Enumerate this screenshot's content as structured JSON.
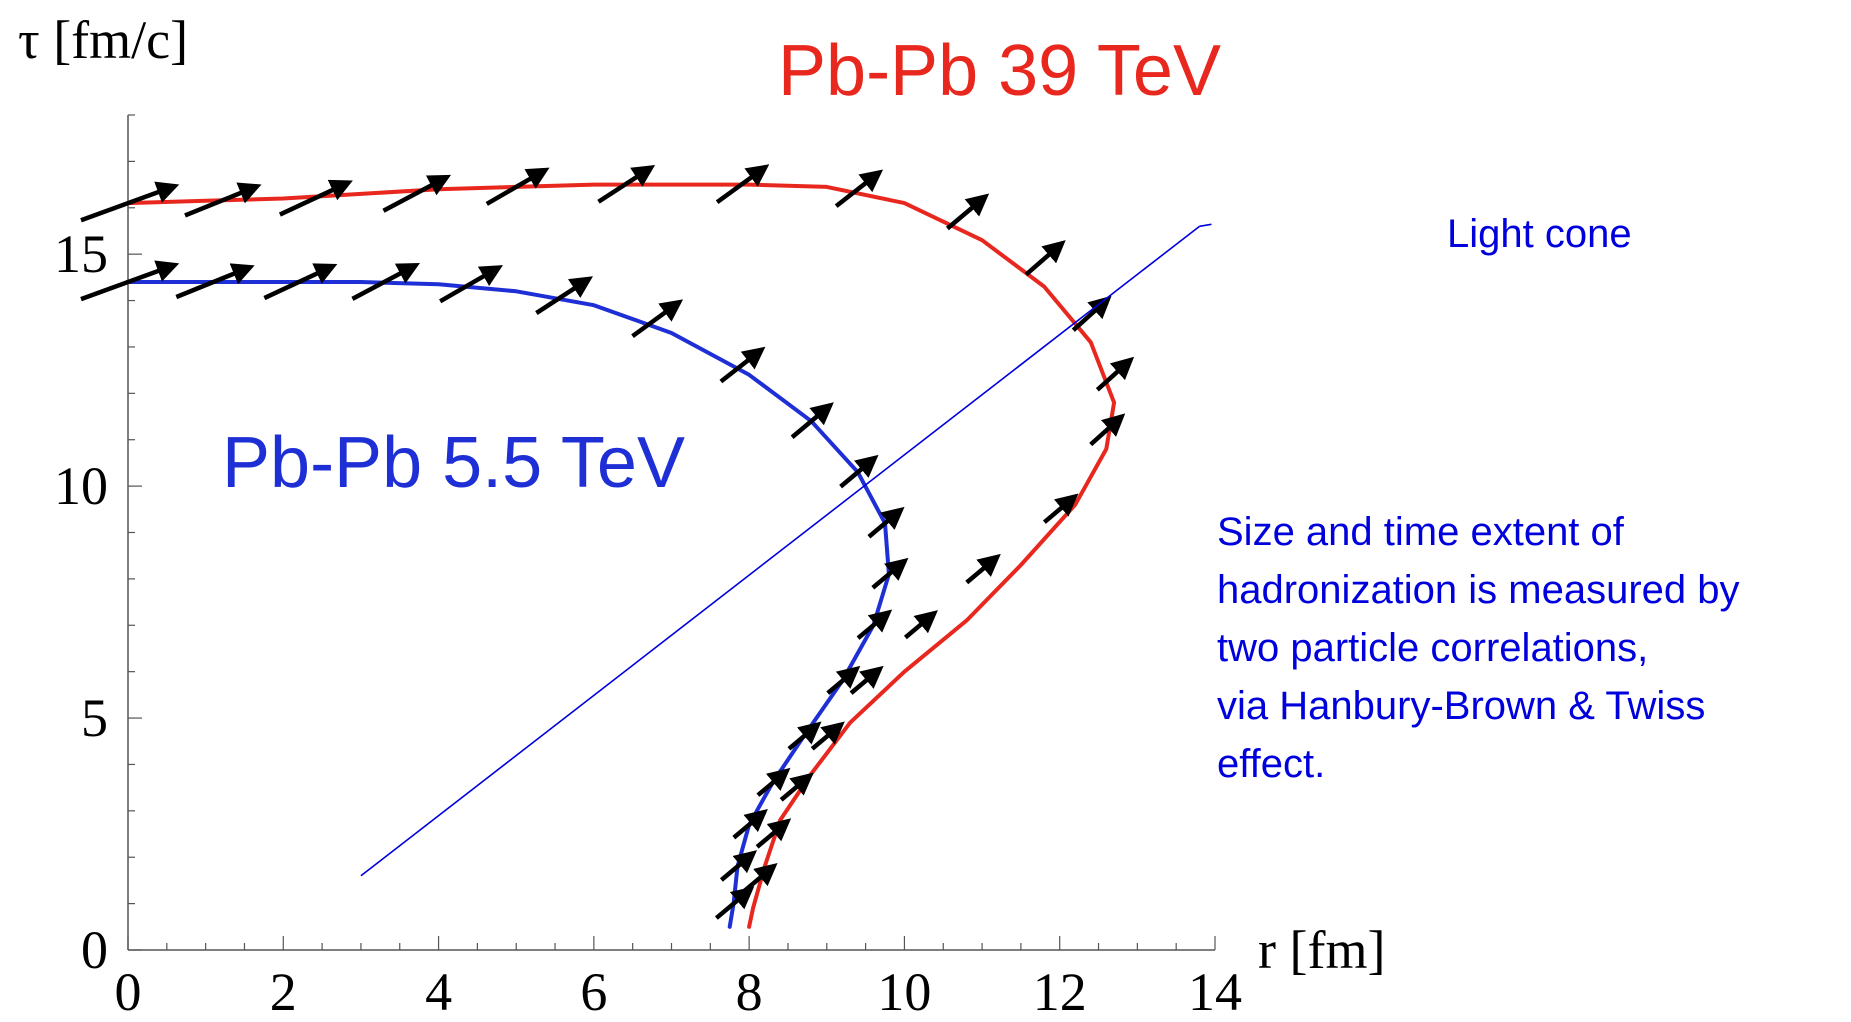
{
  "chart_data": {
    "type": "line",
    "xlabel": "r [fm]",
    "ylabel": "τ [fm/c]",
    "xlim": [
      0,
      14
    ],
    "ylim": [
      0,
      18
    ],
    "xticks": [
      0,
      2,
      4,
      6,
      8,
      10,
      12,
      14
    ],
    "yticks": [
      0,
      5,
      10,
      15
    ],
    "grid": false,
    "series": [
      {
        "name": "Pb-Pb 39 TeV",
        "color": "#e8281e",
        "curve": [
          [
            0,
            16.1
          ],
          [
            1,
            16.15
          ],
          [
            2,
            16.2
          ],
          [
            3,
            16.3
          ],
          [
            4,
            16.4
          ],
          [
            5,
            16.45
          ],
          [
            6,
            16.5
          ],
          [
            7,
            16.5
          ],
          [
            8,
            16.5
          ],
          [
            9,
            16.45
          ],
          [
            10,
            16.1
          ],
          [
            11,
            15.3
          ],
          [
            11.8,
            14.3
          ],
          [
            12.4,
            13.1
          ],
          [
            12.7,
            11.8
          ],
          [
            12.6,
            10.8
          ],
          [
            12.2,
            9.6
          ],
          [
            11.5,
            8.3
          ],
          [
            10.8,
            7.1
          ],
          [
            10.0,
            6.0
          ],
          [
            9.3,
            4.9
          ],
          [
            8.8,
            3.8
          ],
          [
            8.4,
            2.8
          ],
          [
            8.2,
            1.8
          ],
          [
            8.05,
            0.9
          ],
          [
            8.0,
            0.5
          ]
        ],
        "arrows": [
          [
            0,
            16.1,
            20,
            100
          ],
          [
            1.2,
            16.15,
            22,
            78
          ],
          [
            2.4,
            16.2,
            25,
            76
          ],
          [
            3.7,
            16.3,
            28,
            72
          ],
          [
            5,
            16.45,
            30,
            68
          ],
          [
            6.4,
            16.5,
            33,
            63
          ],
          [
            7.9,
            16.5,
            36,
            60
          ],
          [
            9.4,
            16.4,
            38,
            55
          ],
          [
            10.8,
            15.9,
            40,
            50
          ],
          [
            11.8,
            14.9,
            41,
            48
          ],
          [
            12.4,
            13.7,
            42,
            47
          ],
          [
            12.7,
            12.4,
            42,
            45
          ],
          [
            12.6,
            11.2,
            42,
            42
          ],
          [
            12.0,
            9.5,
            40,
            40
          ],
          [
            11.0,
            8.2,
            40,
            40
          ],
          [
            10.2,
            7.0,
            40,
            38
          ],
          [
            9.5,
            5.8,
            40,
            38
          ],
          [
            9.0,
            4.6,
            40,
            38
          ],
          [
            8.6,
            3.5,
            40,
            38
          ],
          [
            8.3,
            2.5,
            40,
            40
          ],
          [
            8.1,
            1.5,
            40,
            45
          ]
        ]
      },
      {
        "name": "Pb-Pb 5.5 TeV",
        "color": "#1f2fd6",
        "curve": [
          [
            0,
            14.4
          ],
          [
            1,
            14.4
          ],
          [
            2,
            14.4
          ],
          [
            3,
            14.4
          ],
          [
            4,
            14.35
          ],
          [
            5,
            14.2
          ],
          [
            6,
            13.9
          ],
          [
            7,
            13.3
          ],
          [
            8,
            12.4
          ],
          [
            8.8,
            11.4
          ],
          [
            9.4,
            10.3
          ],
          [
            9.75,
            9.2
          ],
          [
            9.8,
            8.1
          ],
          [
            9.6,
            7.0
          ],
          [
            9.2,
            5.8
          ],
          [
            8.7,
            4.6
          ],
          [
            8.3,
            3.6
          ],
          [
            8.0,
            2.7
          ],
          [
            7.85,
            1.8
          ],
          [
            7.8,
            1.0
          ],
          [
            7.75,
            0.5
          ]
        ],
        "arrows": [
          [
            0,
            14.4,
            20,
            100
          ],
          [
            1.1,
            14.4,
            22,
            80
          ],
          [
            2.2,
            14.4,
            25,
            76
          ],
          [
            3.3,
            14.4,
            28,
            72
          ],
          [
            4.4,
            14.35,
            30,
            68
          ],
          [
            5.6,
            14.1,
            33,
            63
          ],
          [
            6.8,
            13.6,
            36,
            58
          ],
          [
            7.9,
            12.6,
            38,
            52
          ],
          [
            8.8,
            11.4,
            40,
            50
          ],
          [
            9.4,
            10.3,
            40,
            45
          ],
          [
            9.75,
            9.2,
            40,
            42
          ],
          [
            9.8,
            8.1,
            40,
            42
          ],
          [
            9.6,
            7.0,
            40,
            40
          ],
          [
            9.2,
            5.8,
            40,
            38
          ],
          [
            8.7,
            4.6,
            40,
            38
          ],
          [
            8.3,
            3.6,
            40,
            38
          ],
          [
            8.0,
            2.7,
            40,
            40
          ],
          [
            7.85,
            1.8,
            40,
            42
          ],
          [
            7.8,
            1.0,
            40,
            45
          ]
        ]
      }
    ],
    "annotations": {
      "light_cone_label": "Light cone",
      "light_cone_line": [
        [
          3,
          1.6
        ],
        [
          10.7,
          12.0
        ],
        [
          13.8,
          15.6
        ]
      ],
      "note_lines": [
        "Size and  time extent of",
        "hadronization is measured by",
        "two particle correlations,",
        "via Hanbury-Brown & Twiss",
        "effect."
      ]
    }
  }
}
